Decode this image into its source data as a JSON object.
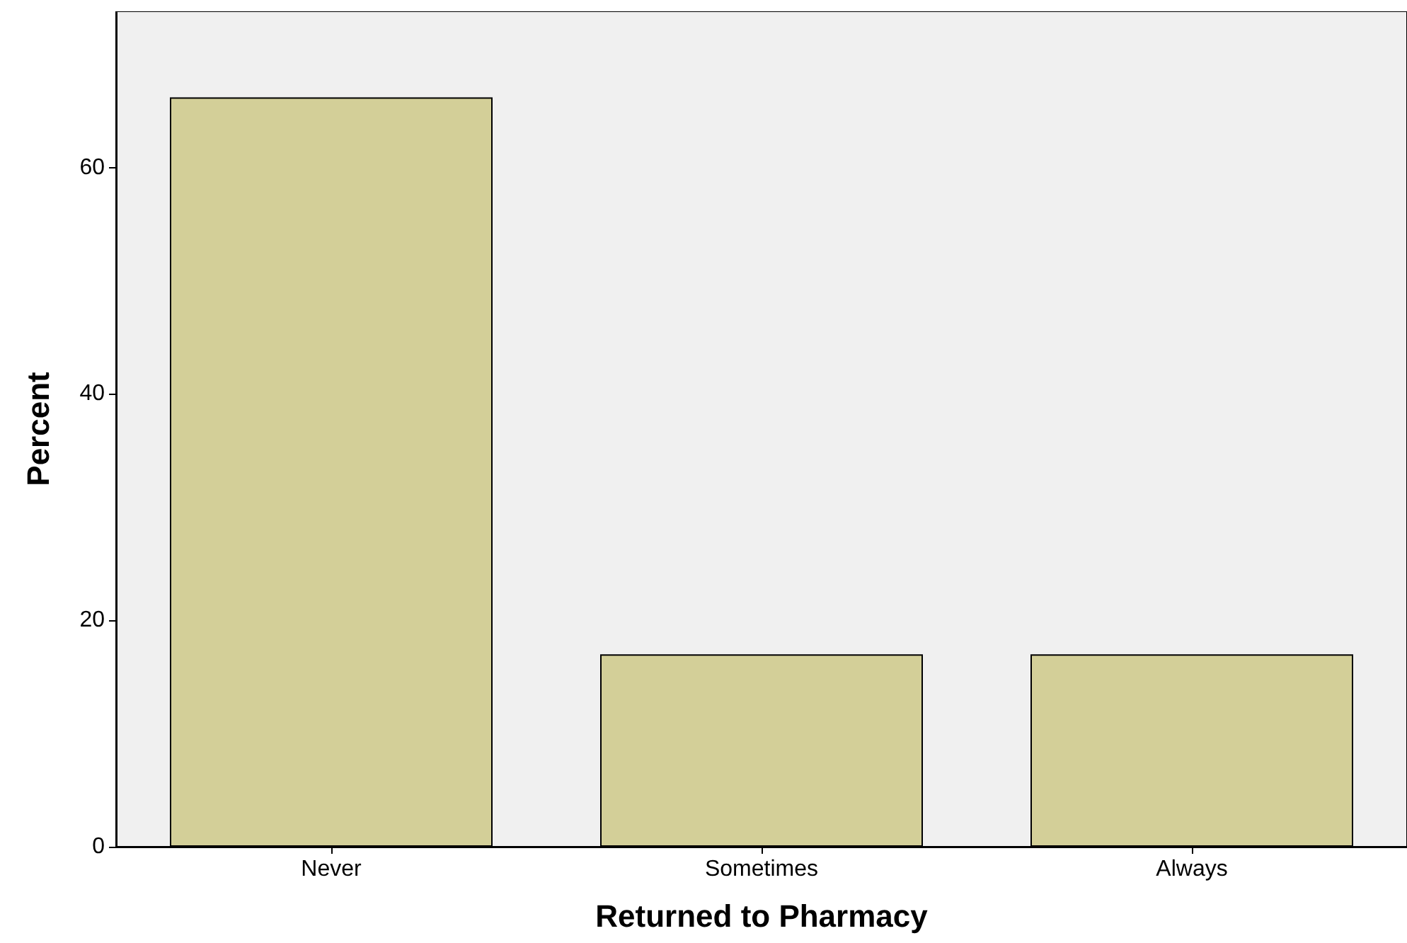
{
  "chart_data": {
    "type": "bar",
    "xlabel": "Returned to Pharmacy",
    "ylabel": "Percent",
    "categories": [
      "Never",
      "Sometimes",
      "Always"
    ],
    "values": [
      66.2,
      17,
      17
    ],
    "color": "#d3cf98",
    "ylim": [
      0,
      73.8
    ],
    "yticks": [
      0,
      20,
      40,
      60
    ],
    "grid": false
  }
}
